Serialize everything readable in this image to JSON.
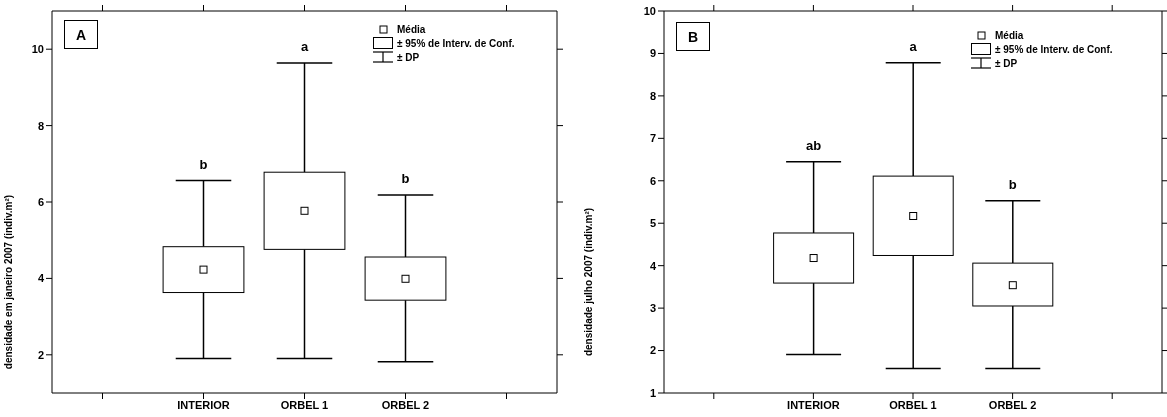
{
  "chart_data": [
    {
      "type": "box",
      "ylabel": "densidade em janeiro 2007 (indiv.m²)",
      "categories": [
        null,
        "INTERIOR",
        "ORBEL 1",
        "ORBEL 2",
        null
      ],
      "ylim": [
        1,
        11
      ],
      "yticks": [
        2,
        4,
        6,
        8,
        10
      ],
      "boxes": [
        null,
        {
          "low": 1.9,
          "q1": 3.63,
          "median": 4.23,
          "q3": 4.83,
          "high": 6.56
        },
        {
          "low": 1.9,
          "q1": 4.76,
          "median": 5.77,
          "q3": 6.78,
          "high": 9.64
        },
        {
          "low": 1.82,
          "q1": 3.43,
          "median": 3.99,
          "q3": 4.56,
          "high": 6.18
        },
        null
      ],
      "annotations": [
        "A",
        "Média",
        "± 95% de Interv. de Conf.",
        "± DP",
        "b",
        "a",
        "b"
      ]
    },
    {
      "type": "box",
      "ylabel": "densidade julho 2007 (indiv.m²)",
      "categories": [
        null,
        "INTERIOR",
        "ORBEL 1",
        "ORBEL 2",
        null
      ],
      "ylim": [
        1,
        10
      ],
      "yticks": [
        1,
        2,
        3,
        4,
        5,
        6,
        7,
        8,
        9,
        10
      ],
      "boxes": [
        null,
        {
          "low": 1.91,
          "q1": 3.59,
          "median": 4.18,
          "q3": 4.77,
          "high": 6.45
        },
        {
          "low": 1.58,
          "q1": 4.24,
          "median": 5.17,
          "q3": 6.11,
          "high": 8.78
        },
        {
          "low": 1.58,
          "q1": 3.05,
          "median": 3.54,
          "q3": 4.06,
          "high": 5.53
        },
        null
      ],
      "annotations": [
        "B",
        "Média",
        "± 95% de Interv. de Conf.",
        "± DP",
        "ab",
        "a",
        "b"
      ]
    }
  ]
}
